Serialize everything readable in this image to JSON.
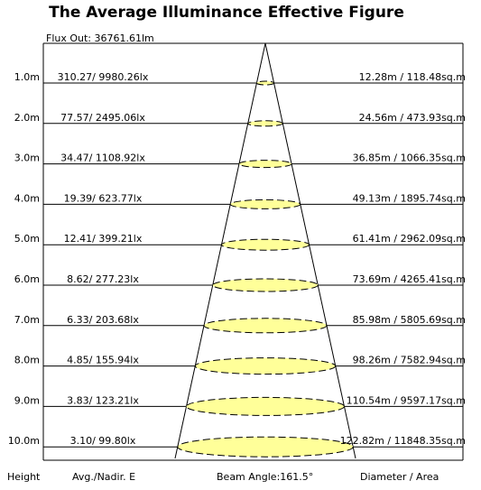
{
  "title": "The Average Illuminance Effective Figure",
  "flux_out": "Flux Out: 36761.61lm",
  "footer": {
    "height_label": "Height",
    "avg_label": "Avg./Nadir. E",
    "beam_label": "Beam Angle:161.5°",
    "diam_label": "Diameter / Area"
  },
  "colors": {
    "ellipse_fill": "#FFFF99",
    "line": "#000000",
    "background": "#FFFFFF"
  },
  "rows": [
    {
      "height": "1.0m",
      "illum": "310.27/ 9980.26lx",
      "diam": "12.28m / 118.48sq.m"
    },
    {
      "height": "2.0m",
      "illum": "77.57/ 2495.06lx",
      "diam": "24.56m / 473.93sq.m"
    },
    {
      "height": "3.0m",
      "illum": "34.47/ 1108.92lx",
      "diam": "36.85m / 1066.35sq.m"
    },
    {
      "height": "4.0m",
      "illum": "19.39/ 623.77lx",
      "diam": "49.13m / 1895.74sq.m"
    },
    {
      "height": "5.0m",
      "illum": "12.41/ 399.21lx",
      "diam": "61.41m / 2962.09sq.m"
    },
    {
      "height": "6.0m",
      "illum": "8.62/ 277.23lx",
      "diam": "73.69m / 4265.41sq.m"
    },
    {
      "height": "7.0m",
      "illum": "6.33/ 203.68lx",
      "diam": "85.98m / 5805.69sq.m"
    },
    {
      "height": "8.0m",
      "illum": "4.85/ 155.94lx",
      "diam": "98.26m / 7582.94sq.m"
    },
    {
      "height": "9.0m",
      "illum": "3.83/ 123.21lx",
      "diam": "110.54m / 9597.17sq.m"
    },
    {
      "height": "10.0m",
      "illum": "3.10/ 99.80lx",
      "diam": "122.82m / 11848.35sq.m"
    }
  ]
}
